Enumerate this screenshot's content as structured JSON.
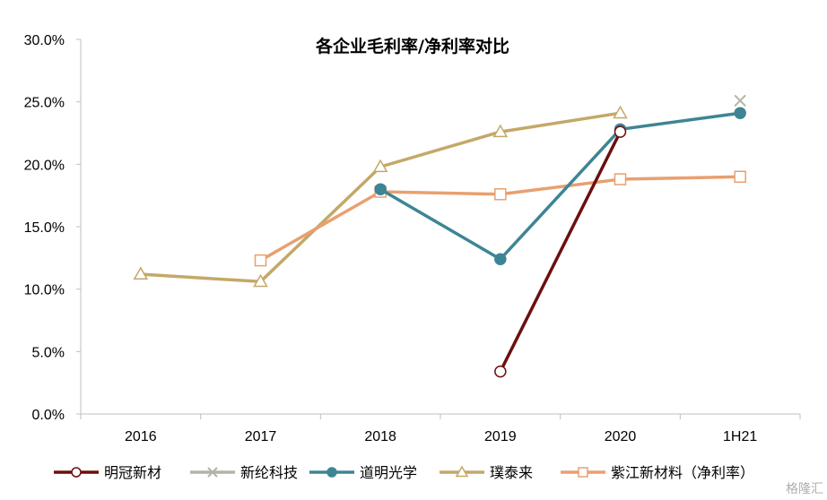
{
  "chart_data": {
    "type": "line",
    "title": "各企业毛利率/净利率对比",
    "categories": [
      "2016",
      "2017",
      "2018",
      "2019",
      "2020",
      "1H21"
    ],
    "ylim": [
      0,
      30
    ],
    "y_ticks": [
      "0.0%",
      "5.0%",
      "10.0%",
      "15.0%",
      "20.0%",
      "25.0%",
      "30.0%"
    ],
    "grid": false,
    "legend_position": "bottom",
    "series": [
      {
        "name": "明冠新材",
        "color": "#6b0f0f",
        "marker": "circle-open",
        "values": [
          null,
          null,
          null,
          3.4,
          22.6,
          null
        ]
      },
      {
        "name": "新纶科技",
        "color": "#b4b4a6",
        "marker": "x",
        "values": [
          null,
          null,
          null,
          null,
          null,
          25.1
        ]
      },
      {
        "name": "道明光学",
        "color": "#3d8594",
        "marker": "circle-filled",
        "values": [
          null,
          null,
          18.0,
          12.4,
          22.8,
          24.1
        ]
      },
      {
        "name": "璞泰来",
        "color": "#c4a868",
        "marker": "triangle-open",
        "values": [
          11.2,
          10.6,
          19.8,
          22.6,
          24.1,
          null
        ]
      },
      {
        "name": "紫江新材料（净利率）",
        "color": "#e8a070",
        "marker": "square-open",
        "values": [
          null,
          12.3,
          17.8,
          17.6,
          18.8,
          19.0
        ]
      }
    ]
  },
  "watermark": "格隆汇"
}
